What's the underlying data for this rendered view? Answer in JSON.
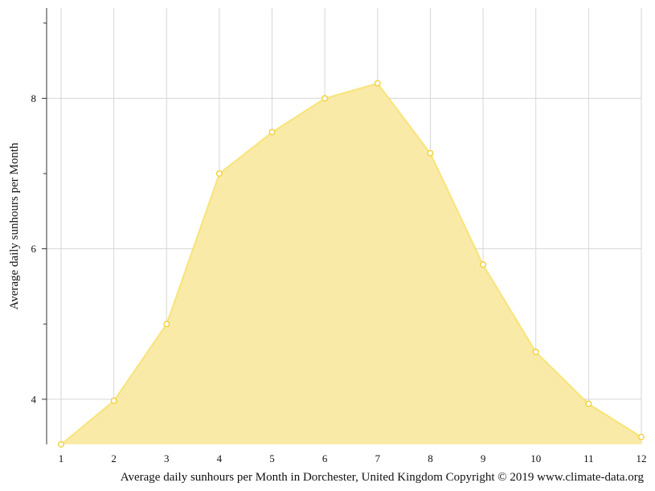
{
  "chart_data": {
    "type": "area",
    "title": "",
    "ylabel": "Average daily sunhours per Month",
    "caption": "Average daily sunhours per Month in Dorchester, United Kingdom Copyright © 2019 www.climate-data.org",
    "x": [
      1,
      2,
      3,
      4,
      5,
      6,
      7,
      8,
      9,
      10,
      11,
      12
    ],
    "x_tick_labels": [
      "1",
      "2",
      "3",
      "4",
      "5",
      "6",
      "7",
      "8",
      "9",
      "10",
      "11",
      "12"
    ],
    "y_tick_values": [
      4,
      6,
      8
    ],
    "y_tick_labels": [
      "4",
      "6",
      "8"
    ],
    "ylim": [
      3.4,
      9.2
    ],
    "grid": true,
    "series": [
      {
        "values": [
          3.4,
          3.98,
          5.0,
          7.0,
          7.55,
          8.0,
          8.2,
          7.27,
          5.79,
          4.63,
          3.94,
          3.5
        ],
        "color": "#f5d838",
        "fill_color": "#f9eaa8"
      }
    ]
  }
}
